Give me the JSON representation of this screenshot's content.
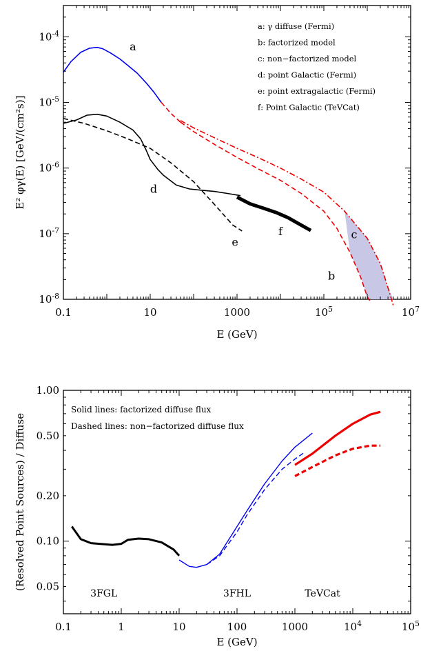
{
  "chart_data": [
    {
      "type": "line",
      "xlabel": "E (GeV)",
      "ylabel": "E² φγ(E)  [GeV/(cm²s)]",
      "xscale": "log",
      "yscale": "log",
      "xlim": [
        0.1,
        10000000
      ],
      "ylim": [
        1e-08,
        0.0003
      ],
      "grid": false,
      "legend_position": "top-right",
      "legend_entries": [
        "a: γ diffuse (Fermi)",
        "b: factorized model",
        "c: non−factorized model",
        "d: point Galactic (Fermi)",
        "e: point extragalactic (Fermi)",
        "f: Point Galactic  (TeVCat)"
      ],
      "x_ticks": [
        {
          "value": 0.1,
          "label": "0.1"
        },
        {
          "value": 10,
          "label": "10"
        },
        {
          "value": 1000,
          "label": "1000"
        },
        {
          "value": 100000,
          "label": "10^5"
        },
        {
          "value": 10000000,
          "label": "10^7"
        }
      ],
      "y_ticks": [
        {
          "value": 1e-08,
          "label": "10^-8"
        },
        {
          "value": 1e-07,
          "label": "10^-7"
        },
        {
          "value": 1e-06,
          "label": "10^-6"
        },
        {
          "value": 1e-05,
          "label": "10^-5"
        },
        {
          "value": 0.0001,
          "label": "10^-4"
        }
      ],
      "series": [
        {
          "name": "a",
          "color": "#0000ee",
          "style": "solid",
          "width": 1.6,
          "points": [
            [
              0.1,
              2.9e-05
            ],
            [
              0.15,
              4.2e-05
            ],
            [
              0.25,
              5.8e-05
            ],
            [
              0.4,
              6.7e-05
            ],
            [
              0.6,
              6.9e-05
            ],
            [
              0.8,
              6.6e-05
            ],
            [
              1.2,
              5.7e-05
            ],
            [
              2,
              4.6e-05
            ],
            [
              3,
              3.7e-05
            ],
            [
              5,
              2.8e-05
            ],
            [
              8,
              2e-05
            ],
            [
              12,
              1.45e-05
            ],
            [
              18,
              1e-05
            ]
          ]
        },
        {
          "name": "a (extrapolation)",
          "color": "#ee0000",
          "style": "dashed",
          "width": 1.6,
          "points": [
            [
              18,
              1e-05
            ],
            [
              30,
              6.8e-06
            ],
            [
              50,
              5e-06
            ]
          ]
        },
        {
          "name": "b",
          "color": "#ee0000",
          "style": "dashed",
          "width": 1.6,
          "points": [
            [
              50,
              5e-06
            ],
            [
              100,
              3.6e-06
            ],
            [
              300,
              2.3e-06
            ],
            [
              1000,
              1.45e-06
            ],
            [
              3000,
              9.8e-07
            ],
            [
              10000,
              6.5e-07
            ],
            [
              30000,
              4.1e-07
            ],
            [
              100000,
              2.2e-07
            ],
            [
              200000,
              1.2e-07
            ],
            [
              400000,
              5.2e-08
            ],
            [
              700000,
              2.2e-08
            ],
            [
              1000000,
              1.1e-08
            ],
            [
              1200000,
              9e-09
            ]
          ]
        },
        {
          "name": "c",
          "color": "#ee0000",
          "style": "dashdot",
          "width": 1.6,
          "points": [
            [
              50,
              5.3e-06
            ],
            [
              100,
              4.1e-06
            ],
            [
              300,
              2.9e-06
            ],
            [
              1000,
              2e-06
            ],
            [
              3000,
              1.45e-06
            ],
            [
              10000,
              1e-06
            ],
            [
              30000,
              6.8e-07
            ],
            [
              100000,
              4.3e-07
            ],
            [
              300000,
              2.2e-07
            ],
            [
              1000000,
              8.5e-08
            ],
            [
              2000000,
              3.5e-08
            ],
            [
              3000000,
              1.5e-08
            ],
            [
              4000000,
              8e-09
            ]
          ]
        },
        {
          "name": "d",
          "color": "#000000",
          "style": "solid",
          "width": 1.6,
          "points": [
            [
              0.1,
              4.8e-06
            ],
            [
              0.2,
              5.4e-06
            ],
            [
              0.35,
              6.4e-06
            ],
            [
              0.6,
              6.6e-06
            ],
            [
              1,
              6.2e-06
            ],
            [
              2,
              5e-06
            ],
            [
              4,
              3.8e-06
            ],
            [
              6,
              2.8e-06
            ],
            [
              8,
              1.9e-06
            ],
            [
              10,
              1.35e-06
            ],
            [
              15,
              9.5e-07
            ],
            [
              20,
              7.8e-07
            ],
            [
              40,
              5.5e-07
            ],
            [
              80,
              4.8e-07
            ],
            [
              150,
              4.6e-07
            ],
            [
              300,
              4.4e-07
            ],
            [
              600,
              4.1e-07
            ],
            [
              1200,
              3.8e-07
            ]
          ]
        },
        {
          "name": "e",
          "color": "#000000",
          "style": "dashed",
          "width": 1.6,
          "points": [
            [
              0.1,
              5.7e-06
            ],
            [
              0.3,
              4.8e-06
            ],
            [
              1,
              3.7e-06
            ],
            [
              3,
              2.8e-06
            ],
            [
              10,
              2e-06
            ],
            [
              30,
              1.2e-06
            ],
            [
              100,
              6.2e-07
            ],
            [
              300,
              2.8e-07
            ],
            [
              800,
              1.35e-07
            ],
            [
              1300,
              1.1e-07
            ]
          ]
        },
        {
          "name": "f",
          "color": "#000000",
          "style": "solid",
          "width": 5,
          "points": [
            [
              1000,
              3.6e-07
            ],
            [
              2000,
              2.85e-07
            ],
            [
              4000,
              2.45e-07
            ],
            [
              8000,
              2.1e-07
            ],
            [
              15000,
              1.75e-07
            ],
            [
              30000,
              1.35e-07
            ],
            [
              50000,
              1.12e-07
            ]
          ]
        }
      ],
      "annotations": [
        {
          "text": "a",
          "x": 4,
          "y": 6.2e-05
        },
        {
          "text": "b",
          "x": 150000,
          "y": 2e-08
        },
        {
          "text": "c",
          "x": 500000,
          "y": 8.5e-08
        },
        {
          "text": "d",
          "x": 12,
          "y": 4.2e-07
        },
        {
          "text": "e",
          "x": 900,
          "y": 6.5e-08
        },
        {
          "text": "f",
          "x": 10000,
          "y": 9.5e-08
        }
      ]
    },
    {
      "type": "line",
      "xlabel": "E  (GeV)",
      "ylabel": "(Resolved Point Sources) / Diffuse",
      "xscale": "log",
      "yscale": "log",
      "xlim": [
        0.1,
        100000
      ],
      "ylim": [
        0.033,
        1.0
      ],
      "grid": false,
      "legend_position": "top-left",
      "legend_entries": [
        "Solid lines:  factorized diffuse flux",
        "Dashed lines:  non−factorized diffuse flux"
      ],
      "x_ticks": [
        {
          "value": 0.1,
          "label": "0.1"
        },
        {
          "value": 1,
          "label": "1"
        },
        {
          "value": 10,
          "label": "10"
        },
        {
          "value": 100,
          "label": "100"
        },
        {
          "value": 1000,
          "label": "1000"
        },
        {
          "value": 10000,
          "label": "10^4"
        },
        {
          "value": 100000,
          "label": "10^5"
        }
      ],
      "y_ticks": [
        {
          "value": 0.05,
          "label": "0.05"
        },
        {
          "value": 0.1,
          "label": "0.10"
        },
        {
          "value": 0.2,
          "label": "0.20"
        },
        {
          "value": 0.5,
          "label": "0.50"
        },
        {
          "value": 1.0,
          "label": "1.00"
        }
      ],
      "series": [
        {
          "name": "3FGL",
          "color": "#000000",
          "style": "solid",
          "width": 3,
          "points": [
            [
              0.14,
              0.125
            ],
            [
              0.2,
              0.103
            ],
            [
              0.3,
              0.097
            ],
            [
              0.5,
              0.0955
            ],
            [
              0.7,
              0.0945
            ],
            [
              1,
              0.096
            ],
            [
              1.3,
              0.102
            ],
            [
              2,
              0.104
            ],
            [
              3,
              0.103
            ],
            [
              5,
              0.098
            ],
            [
              8,
              0.088
            ],
            [
              10,
              0.08
            ]
          ]
        },
        {
          "name": "3FHL",
          "color": "#0000ee",
          "style": "solid",
          "width": 1.4,
          "points": [
            [
              10,
              0.075
            ],
            [
              15,
              0.068
            ],
            [
              20,
              0.067
            ],
            [
              30,
              0.07
            ],
            [
              50,
              0.082
            ],
            [
              100,
              0.125
            ],
            [
              150,
              0.16
            ],
            [
              300,
              0.24
            ],
            [
              600,
              0.34
            ],
            [
              1000,
              0.42
            ],
            [
              2000,
              0.52
            ]
          ]
        },
        {
          "name": "3FHL",
          "color": "#0000ee",
          "style": "dashed",
          "width": 1.4,
          "points": [
            [
              30,
              0.07
            ],
            [
              50,
              0.08
            ],
            [
              100,
              0.115
            ],
            [
              150,
              0.15
            ],
            [
              300,
              0.22
            ],
            [
              600,
              0.3
            ],
            [
              1000,
              0.35
            ],
            [
              1500,
              0.39
            ]
          ]
        },
        {
          "name": "TeVCat",
          "color": "#ee0000",
          "style": "solid",
          "width": 3.2,
          "points": [
            [
              1000,
              0.32
            ],
            [
              2000,
              0.38
            ],
            [
              5000,
              0.5
            ],
            [
              10000,
              0.6
            ],
            [
              20000,
              0.69
            ],
            [
              30000,
              0.72
            ]
          ]
        },
        {
          "name": "TeVCat",
          "color": "#ee0000",
          "style": "dashed",
          "width": 3.2,
          "points": [
            [
              1000,
              0.27
            ],
            [
              2000,
              0.31
            ],
            [
              5000,
              0.37
            ],
            [
              10000,
              0.41
            ],
            [
              20000,
              0.43
            ],
            [
              30000,
              0.43
            ]
          ]
        }
      ],
      "annotations": [
        {
          "text": "3FGL",
          "x": 0.5,
          "y": 0.043
        },
        {
          "text": "3FHL",
          "x": 100,
          "y": 0.043
        },
        {
          "text": "TeVCat",
          "x": 3000,
          "y": 0.043
        }
      ]
    }
  ]
}
